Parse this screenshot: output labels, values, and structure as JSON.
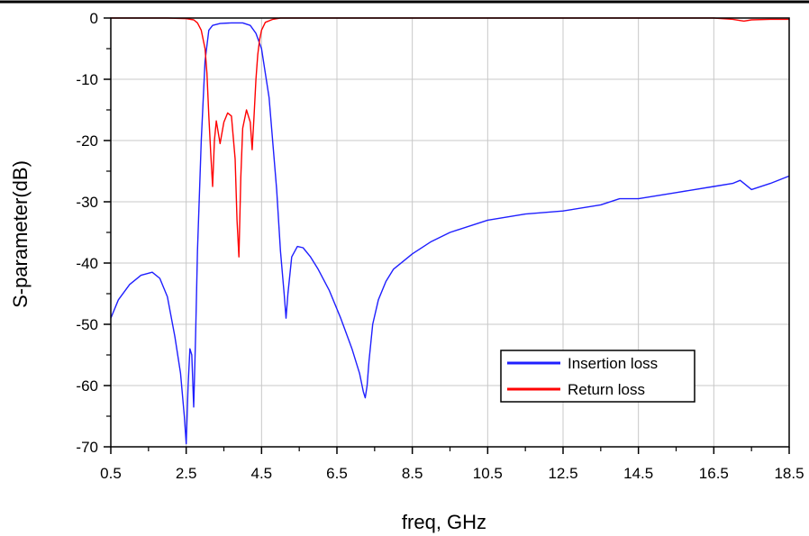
{
  "chart_data": {
    "type": "line",
    "xlabel": "freq, GHz",
    "ylabel": "S-parameter(dB)",
    "xlim": [
      0.5,
      18.5
    ],
    "ylim": [
      -70,
      0
    ],
    "x_ticks": [
      "0.5",
      "2.5",
      "4.5",
      "6.5",
      "8.5",
      "10.5",
      "12.5",
      "14.5",
      "16.5",
      "18.5"
    ],
    "y_ticks": [
      "0",
      "-10",
      "-20",
      "-30",
      "-40",
      "-50",
      "-60",
      "-70"
    ],
    "grid": true,
    "legend_position": "lower-right",
    "series": [
      {
        "name": "Insertion loss",
        "color": "#1f1fff",
        "x": [
          0.5,
          0.7,
          1.0,
          1.3,
          1.6,
          1.8,
          2.0,
          2.2,
          2.35,
          2.45,
          2.5,
          2.55,
          2.6,
          2.65,
          2.7,
          2.75,
          2.8,
          2.9,
          3.0,
          3.1,
          3.2,
          3.4,
          3.7,
          4.0,
          4.2,
          4.35,
          4.5,
          4.7,
          4.9,
          5.0,
          5.1,
          5.15,
          5.2,
          5.3,
          5.45,
          5.6,
          5.8,
          6.0,
          6.3,
          6.6,
          6.9,
          7.1,
          7.2,
          7.25,
          7.3,
          7.35,
          7.45,
          7.6,
          7.8,
          8.0,
          8.5,
          9.0,
          9.5,
          10.5,
          11.5,
          12.5,
          13.5,
          14.0,
          14.5,
          15.5,
          16.5,
          17.0,
          17.2,
          17.3,
          17.5,
          18.0,
          18.5
        ],
        "y": [
          -49,
          -46,
          -43.5,
          -42,
          -41.5,
          -42.5,
          -45.5,
          -52,
          -58,
          -65,
          -69.5,
          -60,
          -54,
          -55,
          -63.5,
          -52,
          -38,
          -20,
          -7,
          -2,
          -1.2,
          -0.9,
          -0.8,
          -0.8,
          -1.2,
          -2.5,
          -5,
          -13,
          -28,
          -38,
          -45,
          -49,
          -45,
          -39,
          -37.3,
          -37.5,
          -39,
          -41,
          -44.5,
          -49,
          -54,
          -58,
          -61,
          -62,
          -60,
          -56,
          -50,
          -46,
          -43,
          -41,
          -38.5,
          -36.5,
          -35,
          -33,
          -32,
          -31.5,
          -30.5,
          -29.5,
          -29.5,
          -28.5,
          -27.5,
          -27,
          -26.5,
          -27,
          -28,
          -27,
          -25.8
        ]
      },
      {
        "name": "Return loss",
        "color": "#ff0000",
        "x": [
          0.5,
          2.0,
          2.5,
          2.7,
          2.8,
          2.9,
          3.0,
          3.05,
          3.1,
          3.15,
          3.2,
          3.25,
          3.3,
          3.4,
          3.5,
          3.6,
          3.7,
          3.8,
          3.85,
          3.9,
          3.95,
          4.0,
          4.1,
          4.2,
          4.25,
          4.3,
          4.35,
          4.4,
          4.45,
          4.5,
          4.6,
          4.8,
          5.0,
          7.0,
          10.0,
          14.0,
          16.5,
          17.0,
          17.3,
          17.5,
          18.0,
          18.5
        ],
        "y": [
          0,
          0,
          -0.1,
          -0.3,
          -0.8,
          -2,
          -5,
          -9,
          -16,
          -22,
          -27.5,
          -20,
          -16.8,
          -20.5,
          -17,
          -15.5,
          -16,
          -23,
          -33,
          -39,
          -26,
          -18,
          -15,
          -17,
          -21.5,
          -16,
          -10,
          -6,
          -3.5,
          -2,
          -0.7,
          -0.2,
          0,
          0,
          0,
          0,
          0,
          -0.2,
          -0.5,
          -0.3,
          -0.2,
          -0.2
        ]
      }
    ]
  }
}
